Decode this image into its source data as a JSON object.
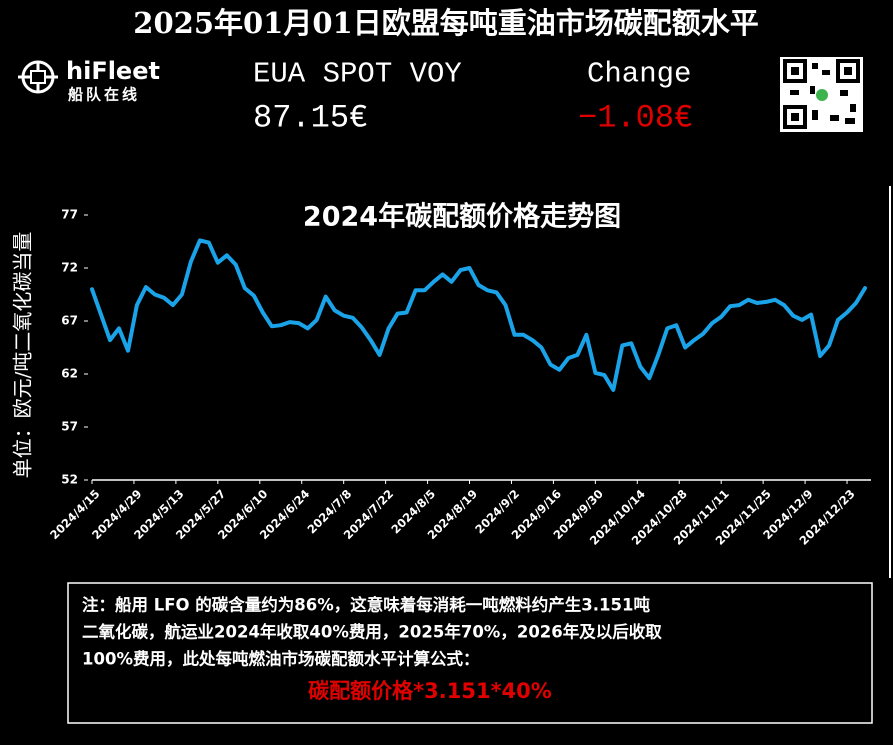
{
  "header": {
    "title": "2025年01月01日欧盟每吨重油市场碳配额水平",
    "logo_name": "hiFleet",
    "logo_sub": "船队在线"
  },
  "price": {
    "label": "EUA SPOT VOY",
    "value": "87.15€",
    "change_label": "Change",
    "change_value": "−1.08€"
  },
  "note": {
    "lines": [
      "注：船用 LFO 的碳含量约为86%，这意味着每消耗一吨燃料约产生3.151吨",
      "二氧化碳，航运业2024年收取40%费用，2025年70%，2026年及以后收取",
      "100%费用，此处每吨燃油市场碳配额水平计算公式："
    ],
    "formula": "碳配额价格*3.151*40%"
  },
  "chart_data": {
    "type": "line",
    "title": "2024年碳配额价格走势图",
    "y_label": "单位：欧元/吨二氧化碳当量",
    "color": "#1aa3e8",
    "x": [
      "2024/4/15",
      "2024/4/18",
      "2024/4/21",
      "2024/4/24",
      "2024/4/27",
      "2024/4/30",
      "2024/5/3",
      "2024/5/6",
      "2024/5/9",
      "2024/5/12",
      "2024/5/15",
      "2024/5/18",
      "2024/5/21",
      "2024/5/24",
      "2024/5/27",
      "2024/5/30",
      "2024/6/2",
      "2024/6/5",
      "2024/6/8",
      "2024/6/11",
      "2024/6/14",
      "2024/6/17",
      "2024/6/20",
      "2024/6/23",
      "2024/6/26",
      "2024/6/29",
      "2024/7/2",
      "2024/7/5",
      "2024/7/8",
      "2024/7/11",
      "2024/7/14",
      "2024/7/17",
      "2024/7/20",
      "2024/7/23",
      "2024/7/26",
      "2024/7/29",
      "2024/8/1",
      "2024/8/4",
      "2024/8/7",
      "2024/8/10",
      "2024/8/13",
      "2024/8/16",
      "2024/8/19",
      "2024/8/22",
      "2024/8/25",
      "2024/8/28",
      "2024/8/31",
      "2024/9/3",
      "2024/9/6",
      "2024/9/9",
      "2024/9/12",
      "2024/9/15",
      "2024/9/18",
      "2024/9/21",
      "2024/9/24",
      "2024/9/27",
      "2024/9/30",
      "2024/10/3",
      "2024/10/6",
      "2024/10/9",
      "2024/10/12",
      "2024/10/15",
      "2024/10/18",
      "2024/10/21",
      "2024/10/24",
      "2024/10/27",
      "2024/10/30",
      "2024/11/2",
      "2024/11/5",
      "2024/11/8",
      "2024/11/11",
      "2024/11/14",
      "2024/11/17",
      "2024/11/20",
      "2024/11/23",
      "2024/11/26",
      "2024/11/29",
      "2024/12/2",
      "2024/12/5",
      "2024/12/8",
      "2024/12/11",
      "2024/12/14",
      "2024/12/17",
      "2024/12/20",
      "2024/12/23",
      "2024/12/26",
      "2024/12/29"
    ],
    "values": [
      70.0,
      67.6,
      65.2,
      66.3,
      64.2,
      68.5,
      70.2,
      69.5,
      69.2,
      68.5,
      69.5,
      72.6,
      74.6,
      74.4,
      72.5,
      73.2,
      72.3,
      70.1,
      69.4,
      67.8,
      66.5,
      66.6,
      66.9,
      66.8,
      66.3,
      67.1,
      69.3,
      68.0,
      67.5,
      67.3,
      66.4,
      65.2,
      63.8,
      66.3,
      67.7,
      67.8,
      69.9,
      69.9,
      70.7,
      71.4,
      70.7,
      71.8,
      72.0,
      70.4,
      69.9,
      69.7,
      68.5,
      65.7,
      65.7,
      65.2,
      64.5,
      62.9,
      62.4,
      63.5,
      63.8,
      65.7,
      62.1,
      61.9,
      60.5,
      64.7,
      64.9,
      62.7,
      61.6,
      63.8,
      66.3,
      66.6,
      64.5,
      65.2,
      65.8,
      66.8,
      67.4,
      68.4,
      68.5,
      69.0,
      68.7,
      68.8,
      69.0,
      68.5,
      67.5,
      67.1,
      67.6,
      63.7,
      64.7,
      67.1,
      67.8,
      68.7,
      70.1
    ],
    "xlim": [
      "2024/4/15",
      "2024/12/31"
    ],
    "xticks": [
      "2024/4/15",
      "2024/4/29",
      "2024/5/13",
      "2024/5/27",
      "2024/6/10",
      "2024/6/24",
      "2024/7/8",
      "2024/7/22",
      "2024/8/5",
      "2024/8/19",
      "2024/9/2",
      "2024/9/16",
      "2024/9/30",
      "2024/10/14",
      "2024/10/28",
      "2024/11/11",
      "2024/11/25",
      "2024/12/9",
      "2024/12/23"
    ],
    "ylim": [
      52,
      77
    ],
    "yticks": [
      52,
      57,
      62,
      67,
      72,
      77
    ],
    "grid": false
  }
}
